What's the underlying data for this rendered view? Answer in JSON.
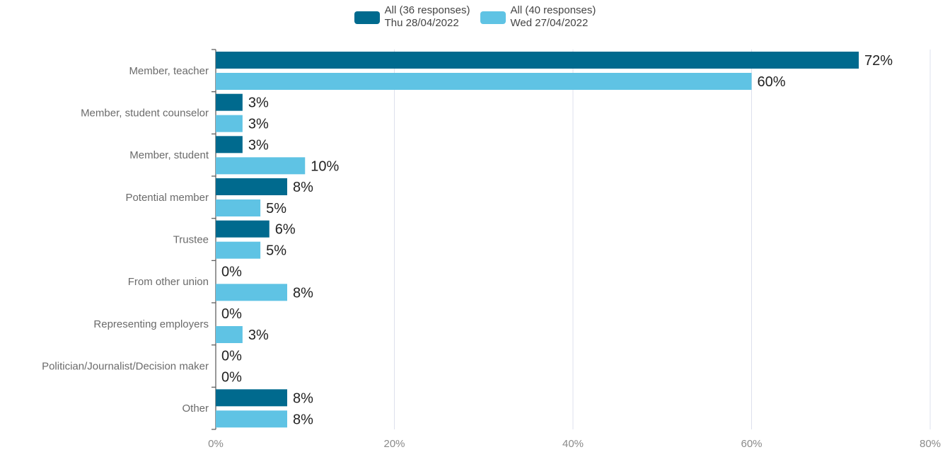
{
  "chart_data": {
    "type": "bar",
    "orientation": "horizontal",
    "categories": [
      "Member, teacher",
      "Member, student counselor",
      "Member, student",
      "Potential member",
      "Trustee",
      "From other union",
      "Representing employers",
      "Politician/Journalist/Decision maker",
      "Other"
    ],
    "series": [
      {
        "name": "All (36 responses)",
        "name_line2": "Thu 28/04/2022",
        "color": "#006a8e",
        "values": [
          72,
          3,
          3,
          8,
          6,
          0,
          0,
          0,
          8
        ],
        "labels": [
          "72%",
          "3%",
          "3%",
          "8%",
          "6%",
          "0%",
          "0%",
          "0%",
          "8%"
        ]
      },
      {
        "name": "All (40 responses)",
        "name_line2": "Wed 27/04/2022",
        "color": "#5fc3e4",
        "values": [
          60,
          3,
          10,
          5,
          5,
          8,
          3,
          0,
          8
        ],
        "labels": [
          "60%",
          "3%",
          "10%",
          "5%",
          "5%",
          "8%",
          "3%",
          "0%",
          "8%"
        ]
      }
    ],
    "xlim": [
      0,
      80
    ],
    "x_ticks": [
      0,
      20,
      40,
      60,
      80
    ],
    "x_tick_labels": [
      "0%",
      "20%",
      "40%",
      "60%",
      "80%"
    ],
    "grid": true,
    "legend_position": "top-center"
  }
}
